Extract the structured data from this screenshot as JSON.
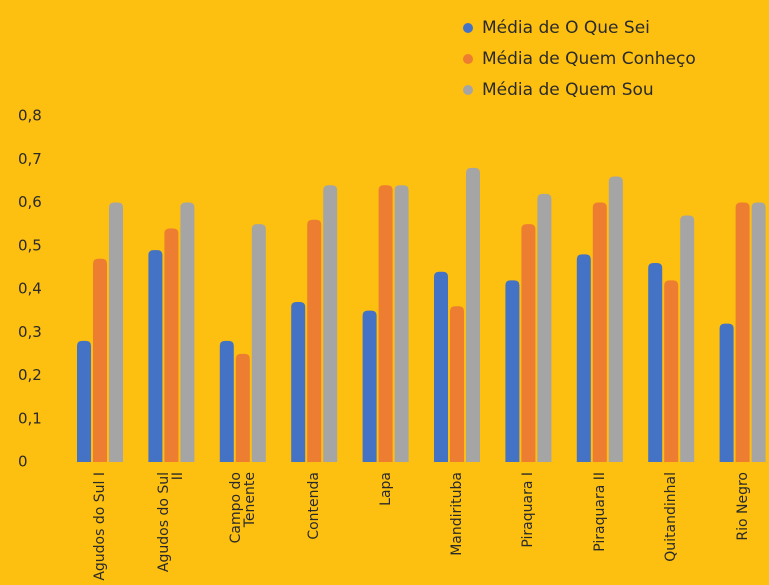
{
  "chart_data": {
    "type": "bar",
    "categories": [
      "Agudos do Sul I",
      "Agudos do Sul II",
      "Campo do Tenente",
      "Contenda",
      "Lapa",
      "Mandirituba",
      "Piraquara I",
      "Piraquara II",
      "Quitandinhal",
      "Rio Negro"
    ],
    "series": [
      {
        "name": "Média de O Que Sei",
        "color": "#4472C4",
        "values": [
          0.28,
          0.49,
          0.28,
          0.37,
          0.35,
          0.44,
          0.42,
          0.48,
          0.46,
          0.32
        ]
      },
      {
        "name": "Média de Quem Conheço",
        "color": "#ED7D31",
        "values": [
          0.47,
          0.54,
          0.25,
          0.56,
          0.64,
          0.36,
          0.55,
          0.6,
          0.42,
          0.6
        ]
      },
      {
        "name": "Média de Quem Sou",
        "color": "#A5A5A5",
        "values": [
          0.6,
          0.6,
          0.55,
          0.64,
          0.64,
          0.68,
          0.62,
          0.66,
          0.57,
          0.6
        ]
      }
    ],
    "ylim": [
      0,
      0.8
    ],
    "yticks": [
      0,
      {
        "value": 0.1,
        "label": "0,1"
      },
      {
        "value": 0.2,
        "label": "0,2"
      },
      {
        "value": 0.3,
        "label": "0,3"
      },
      {
        "value": 0.4,
        "label": "0,4"
      },
      {
        "value": 0.5,
        "label": "0,5"
      },
      {
        "value": 0.6,
        "label": "0,6"
      },
      {
        "value": 0.7,
        "label": "0,7"
      },
      {
        "value": 0.8,
        "label": "0,8"
      }
    ],
    "grid": false,
    "legend": "top-right"
  }
}
